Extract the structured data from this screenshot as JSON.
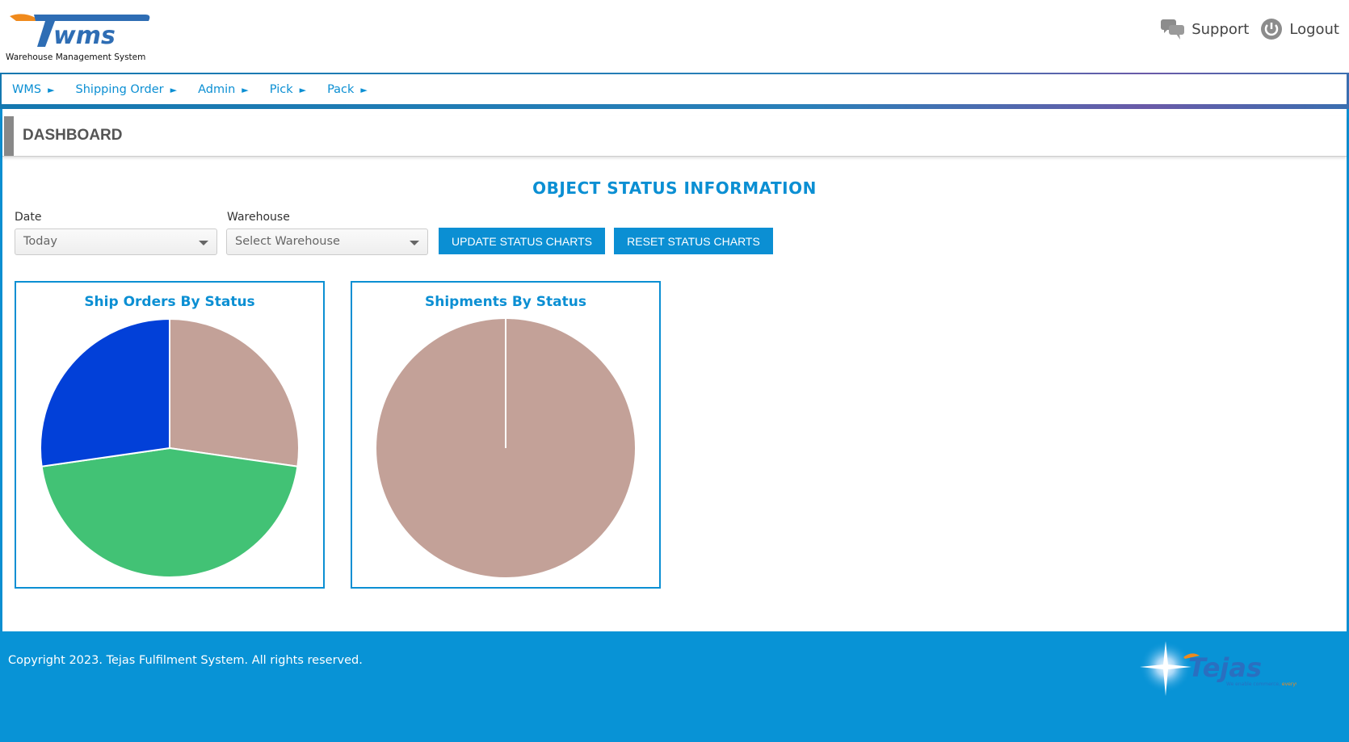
{
  "header": {
    "logo_text": "TWMS",
    "logo_subtitle": "Warehouse Management System",
    "support_label": "Support",
    "logout_label": "Logout",
    "icons": {
      "support": "chat-bubbles-icon",
      "logout": "power-icon"
    }
  },
  "nav": {
    "items": [
      {
        "label": "WMS"
      },
      {
        "label": "Shipping Order"
      },
      {
        "label": "Admin"
      },
      {
        "label": "Pick"
      },
      {
        "label": "Pack"
      }
    ],
    "arrow": "►"
  },
  "page": {
    "title": "DASHBOARD",
    "section_title": "OBJECT STATUS INFORMATION"
  },
  "filters": {
    "date_label": "Date",
    "date_value": "Today",
    "warehouse_label": "Warehouse",
    "warehouse_placeholder": "Select Warehouse",
    "update_button": "UPDATE STATUS CHARTS",
    "reset_button": "RESET STATUS CHARTS"
  },
  "colors": {
    "accent": "#0b8fd3",
    "footer": "#0893d6"
  },
  "chart_data": [
    {
      "type": "pie",
      "title": "Ship Orders By Status",
      "values": [
        3,
        5,
        3
      ],
      "colors": [
        "#c3a198",
        "#42c275",
        "#0240d8"
      ]
    },
    {
      "type": "pie",
      "title": "Shipments By Status",
      "values": [
        1
      ],
      "colors": [
        "#c3a198"
      ]
    }
  ],
  "footer": {
    "copyright": "Copyright 2023. Tejas Fulfilment System. All rights reserved.",
    "brand_logo_text": "Tejas",
    "brand_tagline": "We enable commerce, everywhere."
  }
}
